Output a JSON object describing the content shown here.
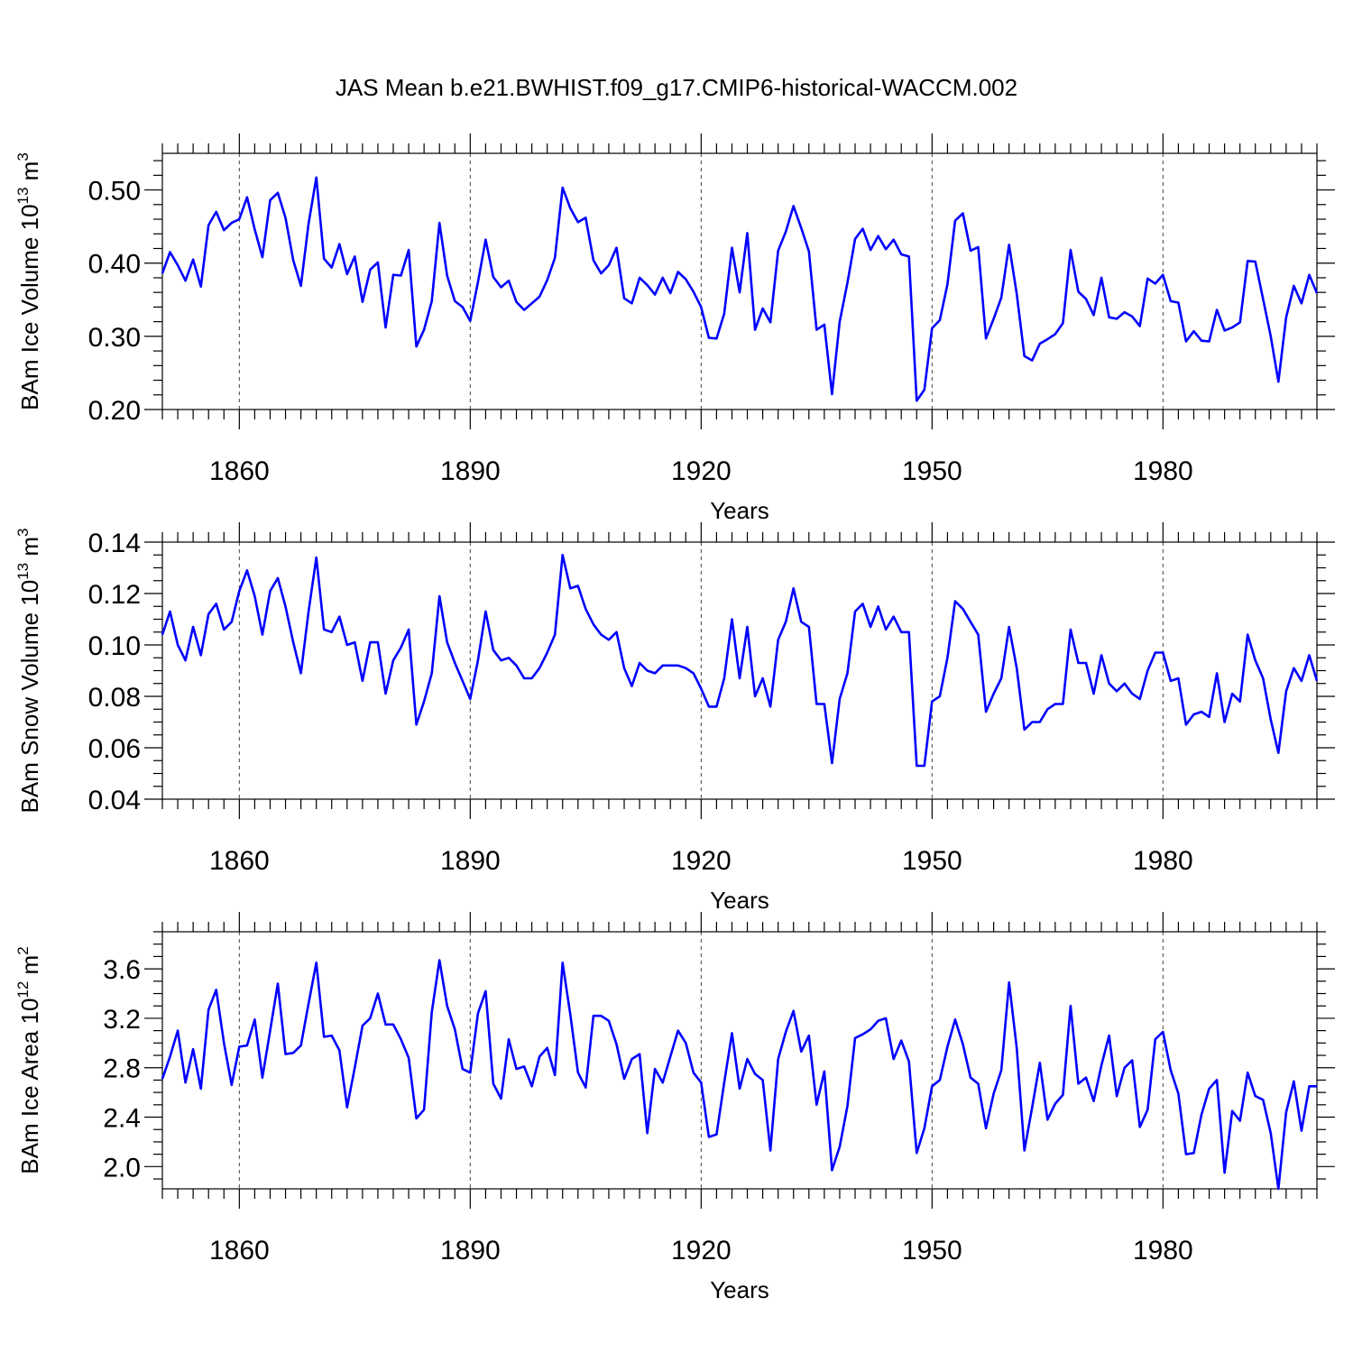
{
  "title": "JAS Mean b.e21.BWHIST.f09_g17.CMIP6-historical-WACCM.002",
  "chart_data": [
    {
      "type": "line",
      "name": "ice-volume",
      "ylabel": "BAm Ice Volume 10",
      "ylabel_exp": "13",
      "ylabel_unit": " m",
      "ylabel_unit_exp": "3",
      "xlabel": "Years",
      "xlim": [
        1850,
        2000
      ],
      "ylim": [
        0.2,
        0.55
      ],
      "yticks": [
        0.2,
        0.3,
        0.4,
        0.5
      ],
      "ytick_labels": [
        "0.20",
        "0.30",
        "0.40",
        "0.50"
      ],
      "yminor_step": 0.02,
      "xticks": [
        1860,
        1890,
        1920,
        1950,
        1980
      ],
      "xtick_labels": [
        "1860",
        "1890",
        "1920",
        "1950",
        "1980"
      ],
      "xminor_step": 2,
      "grid_x": [
        1860,
        1890,
        1920,
        1950,
        1980
      ],
      "x_start": 1850,
      "color": "#0000ff",
      "values": [
        0.386,
        0.415,
        0.397,
        0.376,
        0.405,
        0.368,
        0.452,
        0.47,
        0.445,
        0.455,
        0.46,
        0.49,
        0.446,
        0.408,
        0.486,
        0.496,
        0.462,
        0.404,
        0.369,
        0.454,
        0.517,
        0.406,
        0.394,
        0.426,
        0.385,
        0.409,
        0.347,
        0.391,
        0.401,
        0.312,
        0.384,
        0.383,
        0.418,
        0.286,
        0.309,
        0.348,
        0.455,
        0.383,
        0.348,
        0.34,
        0.321,
        0.374,
        0.432,
        0.381,
        0.367,
        0.376,
        0.347,
        0.336,
        0.345,
        0.354,
        0.377,
        0.407,
        0.503,
        0.475,
        0.456,
        0.462,
        0.404,
        0.386,
        0.397,
        0.421,
        0.352,
        0.345,
        0.38,
        0.37,
        0.357,
        0.38,
        0.359,
        0.388,
        0.378,
        0.361,
        0.34,
        0.298,
        0.297,
        0.331,
        0.421,
        0.36,
        0.441,
        0.309,
        0.338,
        0.319,
        0.417,
        0.443,
        0.478,
        0.448,
        0.416,
        0.309,
        0.316,
        0.221,
        0.32,
        0.373,
        0.433,
        0.447,
        0.418,
        0.437,
        0.419,
        0.432,
        0.412,
        0.409,
        0.212,
        0.227,
        0.311,
        0.322,
        0.371,
        0.458,
        0.468,
        0.417,
        0.422,
        0.297,
        0.324,
        0.353,
        0.425,
        0.358,
        0.273,
        0.267,
        0.29,
        0.296,
        0.303,
        0.318,
        0.418,
        0.361,
        0.351,
        0.329,
        0.38,
        0.326,
        0.324,
        0.333,
        0.327,
        0.314,
        0.379,
        0.372,
        0.384,
        0.348,
        0.346,
        0.293,
        0.307,
        0.294,
        0.293,
        0.336,
        0.308,
        0.312,
        0.319,
        0.403,
        0.402,
        0.351,
        0.3,
        0.238,
        0.326,
        0.369,
        0.345,
        0.384,
        0.359
      ]
    },
    {
      "type": "line",
      "name": "snow-volume",
      "ylabel": "BAm Snow Volume 10",
      "ylabel_exp": "13",
      "ylabel_unit": " m",
      "ylabel_unit_exp": "3",
      "xlabel": "Years",
      "xlim": [
        1850,
        2000
      ],
      "ylim": [
        0.04,
        0.14
      ],
      "yticks": [
        0.04,
        0.06,
        0.08,
        0.1,
        0.12,
        0.14
      ],
      "ytick_labels": [
        "0.04",
        "0.06",
        "0.08",
        "0.10",
        "0.12",
        "0.14"
      ],
      "yminor_step": 0.005,
      "xticks": [
        1860,
        1890,
        1920,
        1950,
        1980
      ],
      "xtick_labels": [
        "1860",
        "1890",
        "1920",
        "1950",
        "1980"
      ],
      "xminor_step": 2,
      "grid_x": [
        1860,
        1890,
        1920,
        1950,
        1980
      ],
      "x_start": 1850,
      "color": "#0000ff",
      "values": [
        0.104,
        0.113,
        0.1,
        0.094,
        0.107,
        0.096,
        0.112,
        0.116,
        0.106,
        0.109,
        0.121,
        0.129,
        0.119,
        0.104,
        0.121,
        0.126,
        0.115,
        0.101,
        0.089,
        0.113,
        0.134,
        0.106,
        0.105,
        0.111,
        0.1,
        0.101,
        0.086,
        0.101,
        0.101,
        0.081,
        0.094,
        0.099,
        0.106,
        0.069,
        0.078,
        0.089,
        0.119,
        0.101,
        0.093,
        0.086,
        0.079,
        0.094,
        0.113,
        0.098,
        0.094,
        0.095,
        0.092,
        0.087,
        0.087,
        0.091,
        0.097,
        0.104,
        0.135,
        0.122,
        0.123,
        0.114,
        0.108,
        0.104,
        0.102,
        0.105,
        0.091,
        0.084,
        0.093,
        0.09,
        0.089,
        0.092,
        0.092,
        0.092,
        0.091,
        0.089,
        0.083,
        0.076,
        0.076,
        0.087,
        0.11,
        0.087,
        0.107,
        0.08,
        0.087,
        0.076,
        0.102,
        0.109,
        0.122,
        0.109,
        0.107,
        0.077,
        0.077,
        0.054,
        0.079,
        0.089,
        0.113,
        0.116,
        0.107,
        0.115,
        0.106,
        0.111,
        0.105,
        0.105,
        0.053,
        0.053,
        0.078,
        0.08,
        0.095,
        0.117,
        0.114,
        0.109,
        0.104,
        0.074,
        0.081,
        0.087,
        0.107,
        0.091,
        0.067,
        0.07,
        0.07,
        0.075,
        0.077,
        0.077,
        0.106,
        0.093,
        0.093,
        0.081,
        0.096,
        0.085,
        0.082,
        0.085,
        0.081,
        0.079,
        0.09,
        0.097,
        0.097,
        0.086,
        0.087,
        0.069,
        0.073,
        0.074,
        0.072,
        0.089,
        0.07,
        0.081,
        0.078,
        0.104,
        0.094,
        0.087,
        0.071,
        0.058,
        0.082,
        0.091,
        0.086,
        0.096,
        0.086
      ]
    },
    {
      "type": "line",
      "name": "ice-area",
      "ylabel": "BAm Ice Area 10",
      "ylabel_exp": "12",
      "ylabel_unit": " m",
      "ylabel_unit_exp": "2",
      "xlabel": "Years",
      "xlim": [
        1850,
        2000
      ],
      "ylim": [
        1.82,
        3.9
      ],
      "yticks": [
        2.0,
        2.4,
        2.8,
        3.2,
        3.6
      ],
      "ytick_labels": [
        "2.0",
        "2.4",
        "2.8",
        "3.2",
        "3.6"
      ],
      "yminor_step": 0.1,
      "xticks": [
        1860,
        1890,
        1920,
        1950,
        1980
      ],
      "xtick_labels": [
        "1860",
        "1890",
        "1920",
        "1950",
        "1980"
      ],
      "xminor_step": 2,
      "grid_x": [
        1860,
        1890,
        1920,
        1950,
        1980
      ],
      "x_start": 1850,
      "color": "#0000ff",
      "values": [
        2.71,
        2.89,
        3.1,
        2.68,
        2.95,
        2.63,
        3.27,
        3.43,
        3.0,
        2.66,
        2.97,
        2.98,
        3.19,
        2.72,
        3.1,
        3.48,
        2.91,
        2.92,
        2.98,
        3.32,
        3.65,
        3.05,
        3.06,
        2.94,
        2.48,
        2.8,
        3.14,
        3.2,
        3.4,
        3.15,
        3.15,
        3.03,
        2.88,
        2.39,
        2.46,
        3.25,
        3.67,
        3.3,
        3.11,
        2.79,
        2.76,
        3.24,
        3.42,
        2.67,
        2.55,
        3.03,
        2.79,
        2.81,
        2.65,
        2.89,
        2.96,
        2.74,
        3.65,
        3.23,
        2.76,
        2.64,
        3.22,
        3.22,
        3.18,
        2.99,
        2.71,
        2.87,
        2.91,
        2.27,
        2.79,
        2.68,
        2.89,
        3.1,
        3.0,
        2.76,
        2.68,
        2.24,
        2.26,
        2.68,
        3.08,
        2.63,
        2.87,
        2.75,
        2.7,
        2.13,
        2.87,
        3.09,
        3.26,
        2.93,
        3.06,
        2.5,
        2.77,
        1.97,
        2.16,
        2.49,
        3.04,
        3.07,
        3.11,
        3.18,
        3.2,
        2.87,
        3.02,
        2.85,
        2.11,
        2.31,
        2.65,
        2.7,
        2.97,
        3.19,
        2.99,
        2.72,
        2.67,
        2.31,
        2.59,
        2.78,
        3.49,
        2.96,
        2.13,
        2.48,
        2.84,
        2.38,
        2.51,
        2.58,
        3.3,
        2.67,
        2.72,
        2.53,
        2.82,
        3.06,
        2.57,
        2.8,
        2.86,
        2.32,
        2.46,
        3.03,
        3.09,
        2.78,
        2.59,
        2.1,
        2.11,
        2.42,
        2.63,
        2.7,
        1.95,
        2.45,
        2.37,
        2.76,
        2.57,
        2.54,
        2.27,
        1.82,
        2.44,
        2.69,
        2.29,
        2.65,
        2.65
      ]
    }
  ]
}
